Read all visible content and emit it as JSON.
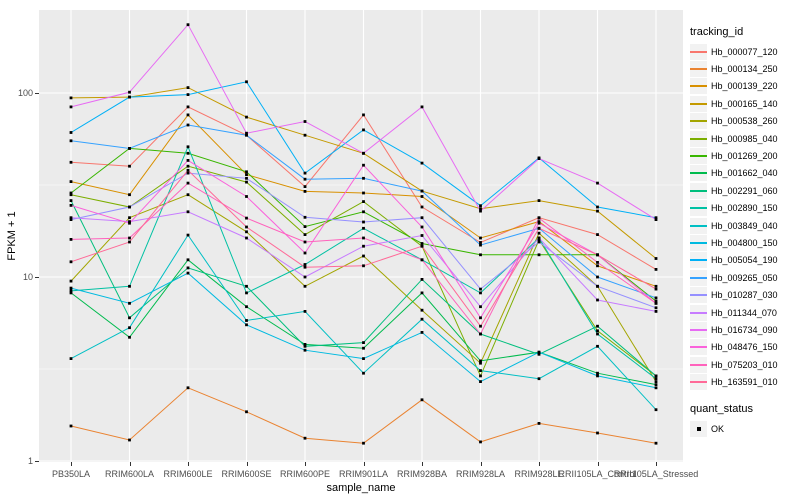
{
  "figure": {
    "background": "#FFFFFF",
    "panel_background": "#EBEBEB",
    "grid_color": "#FFFFFF",
    "tick_label_color": "#4D4D4D",
    "marker_color": "#000000"
  },
  "axes": {
    "x_title": "sample_name",
    "y_title": "FPKM + 1",
    "y_tick_labels": [
      "100",
      "10",
      "1"
    ],
    "y_tick_values": [
      100,
      10,
      1
    ]
  },
  "legend": {
    "tracking_title": "tracking_id",
    "quant_title": "quant_status",
    "quant_entries": [
      {
        "label": "OK",
        "shape": "black-square"
      }
    ]
  },
  "chart_data": {
    "type": "line",
    "title": "",
    "xlabel": "sample_name",
    "ylabel": "FPKM + 1",
    "yscale": "log10",
    "ylim": [
      0.95,
      283
    ],
    "grid": "on",
    "legend_position": "right",
    "marker": "black-square",
    "x": [
      "PB350LA",
      "RRIM600LA",
      "RRIM600LE",
      "RRIM600SE",
      "RRIM600PE",
      "RRIM901LA",
      "RRIM928BA",
      "RRIM928LA",
      "RRIM928LE",
      "RRII105LA_Control",
      "RRII105LA_Stressed"
    ],
    "series": [
      {
        "name": "Hb_000077_120",
        "color": "#F8766D",
        "values": [
          42,
          40,
          84,
          59,
          31,
          76,
          24,
          15.4,
          21,
          17,
          11
        ]
      },
      {
        "name": "Hb_000134_250",
        "color": "#EA8331",
        "values": [
          1.55,
          1.3,
          2.5,
          1.85,
          1.33,
          1.25,
          2.15,
          1.27,
          1.6,
          1.42,
          1.25
        ]
      },
      {
        "name": "Hb_000139_220",
        "color": "#D89000",
        "values": [
          33,
          28,
          76,
          36,
          29.2,
          28.6,
          27.4,
          16.3,
          20,
          11.5,
          8.9
        ]
      },
      {
        "name": "Hb_000165_140",
        "color": "#C49A00",
        "values": [
          94,
          95,
          107,
          74,
          59,
          47,
          29.3,
          23.5,
          26,
          22.8,
          12.6
        ]
      },
      {
        "name": "Hb_000538_260",
        "color": "#A3A500",
        "values": [
          9.5,
          21,
          28,
          17.6,
          8.9,
          13,
          6.6,
          3.4,
          17.3,
          8.9,
          2.7
        ]
      },
      {
        "name": "Hb_000985_040",
        "color": "#7CAE00",
        "values": [
          28,
          24,
          40,
          32.8,
          17,
          25.7,
          14.7,
          2.9,
          15.9,
          5.1,
          2.9
        ]
      },
      {
        "name": "Hb_001269_200",
        "color": "#39B600",
        "values": [
          28.6,
          50,
          47,
          37.3,
          18.8,
          22.6,
          15.2,
          13.2,
          13.2,
          13.2,
          7.4
        ]
      },
      {
        "name": "Hb_001662_040",
        "color": "#00BB4E",
        "values": [
          8.2,
          4.7,
          12.4,
          6.9,
          4.3,
          4.1,
          8.2,
          3.5,
          3.9,
          3.0,
          2.6
        ]
      },
      {
        "name": "Hb_002291_060",
        "color": "#00BF7D",
        "values": [
          26,
          6.0,
          11.2,
          8.9,
          4.2,
          4.4,
          9.7,
          4.9,
          3.8,
          5.4,
          2.9
        ]
      },
      {
        "name": "Hb_002890_150",
        "color": "#00C1A3",
        "values": [
          8.4,
          8.9,
          51,
          8.2,
          11.7,
          18.4,
          12.4,
          8.2,
          16.3,
          4.9,
          2.8
        ]
      },
      {
        "name": "Hb_003849_040",
        "color": "#00BFC4",
        "values": [
          3.6,
          5.3,
          16.9,
          5.8,
          6.5,
          3.0,
          5.9,
          3.1,
          2.8,
          4.2,
          1.9
        ]
      },
      {
        "name": "Hb_004800_150",
        "color": "#00BAE0",
        "values": [
          8.7,
          7.2,
          10.5,
          5.5,
          4.0,
          3.6,
          5.0,
          2.7,
          3.9,
          2.9,
          2.5
        ]
      },
      {
        "name": "Hb_005054_190",
        "color": "#00B0F6",
        "values": [
          61,
          95,
          98,
          115,
          36.7,
          63,
          41.6,
          24.4,
          44.4,
          24,
          21
        ]
      },
      {
        "name": "Hb_009265_050",
        "color": "#35A2FF",
        "values": [
          55,
          50,
          67,
          59,
          34,
          34.4,
          29.3,
          14.9,
          18.4,
          10,
          7.7
        ]
      },
      {
        "name": "Hb_010287_030",
        "color": "#9590FF",
        "values": [
          20.5,
          24,
          36.7,
          34.4,
          21.1,
          19.9,
          21,
          8.6,
          15.5,
          8.9,
          6.8
        ]
      },
      {
        "name": "Hb_011344_070",
        "color": "#C77CFF",
        "values": [
          21,
          20,
          22.6,
          16.3,
          10,
          14.7,
          16.8,
          6.9,
          16.3,
          7.5,
          6.5
        ]
      },
      {
        "name": "Hb_016734_090",
        "color": "#E76BF3",
        "values": [
          84,
          101,
          235,
          60.5,
          70,
          47,
          84,
          22.8,
          44,
          32.4,
          20.5
        ]
      },
      {
        "name": "Hb_048476_150",
        "color": "#FA62DB",
        "values": [
          24.5,
          19.6,
          43,
          27.4,
          13.5,
          40.5,
          18.7,
          6.0,
          19.6,
          13.2,
          7.2
        ]
      },
      {
        "name": "Hb_075203_010",
        "color": "#FF62BC",
        "values": [
          16,
          16.3,
          32.4,
          20.9,
          15.5,
          16.3,
          12.4,
          4.9,
          20.9,
          12,
          7.2
        ]
      },
      {
        "name": "Hb_163591_010",
        "color": "#FF6A98",
        "values": [
          12.1,
          15.5,
          38,
          18.7,
          11.3,
          11.5,
          14.7,
          5.4,
          18.4,
          13.2,
          8.6
        ]
      }
    ]
  }
}
